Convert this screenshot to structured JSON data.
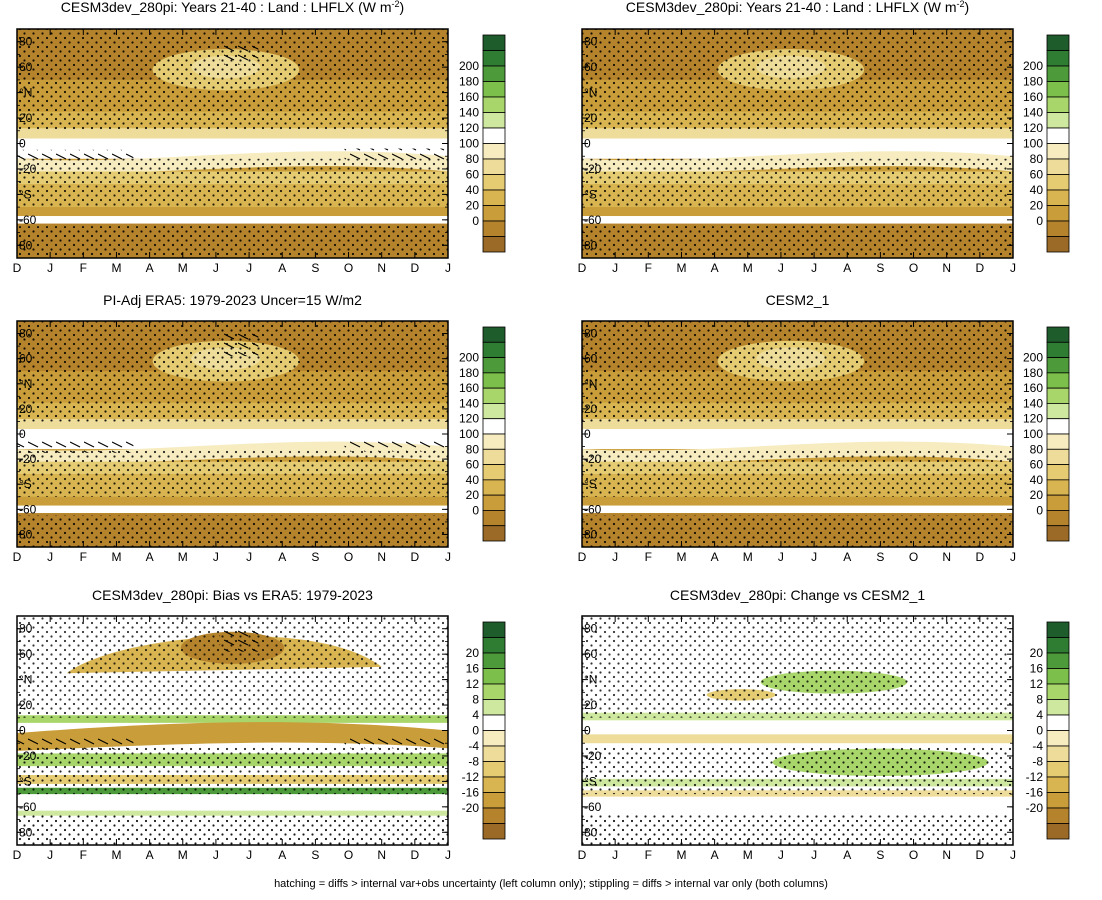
{
  "caption": "hatching = diffs > internal var+obs uncertainty (left column only); stippling = diffs > internal var only (both columns)",
  "colors": {
    "bg_land": "#ffffff",
    "ocean": "#ffffff"
  },
  "months": [
    "D",
    "J",
    "F",
    "M",
    "A",
    "M",
    "J",
    "J",
    "A",
    "S",
    "O",
    "N",
    "D",
    "J"
  ],
  "lat_ticks": [
    "80",
    "60",
    "°N",
    "20",
    "0",
    "-20",
    "°S",
    "-60",
    "80"
  ],
  "abs_levels": [
    "200",
    "180",
    "160",
    "140",
    "120",
    "100",
    "80",
    "60",
    "40",
    "20",
    "0"
  ],
  "abs_colors": [
    "#1f5c2b",
    "#2e7d32",
    "#4c9a3a",
    "#7cbf4a",
    "#a8d66a",
    "#cfe8a0",
    "#ffffff",
    "#f7ecc0",
    "#eedd9a",
    "#e5cc73",
    "#d9b551",
    "#c99d39",
    "#b5832c",
    "#9c6a27"
  ],
  "diff_levels": [
    "20",
    "16",
    "12",
    "8",
    "4",
    "0",
    "-4",
    "-8",
    "-12",
    "-16",
    "-20"
  ],
  "diff_colors": [
    "#1f5c2b",
    "#2e7d32",
    "#4c9a3a",
    "#7cbf4a",
    "#a8d66a",
    "#cfe8a0",
    "#ffffff",
    "#f7ecc0",
    "#eedd9a",
    "#e5cc73",
    "#d9b551",
    "#c99d39",
    "#b5832c",
    "#9c6a27"
  ],
  "chart_data": [
    {
      "type": "heatmap",
      "title": "CESM3dev_280pi: Years 21-40 : Land : LHFLX (W m",
      "title_sup": "-2",
      "title_end": ")",
      "x": [
        "D",
        "J",
        "F",
        "M",
        "A",
        "M",
        "J",
        "J",
        "A",
        "S",
        "O",
        "N",
        "D",
        "J"
      ],
      "y_ticks": [
        "80",
        "60",
        "°N",
        "20",
        "0",
        "-20",
        "°S",
        "-60",
        "80"
      ],
      "levels": [
        "200",
        "180",
        "160",
        "140",
        "120",
        "100",
        "80",
        "60",
        "40",
        "20",
        "0"
      ],
      "scale": "abs",
      "hatching": true,
      "stippling": true
    },
    {
      "type": "heatmap",
      "title": "CESM3dev_280pi: Years 21-40 : Land : LHFLX (W m",
      "title_sup": "-2",
      "title_end": ")",
      "x": [
        "D",
        "J",
        "F",
        "M",
        "A",
        "M",
        "J",
        "J",
        "A",
        "S",
        "O",
        "N",
        "D",
        "J"
      ],
      "y_ticks": [
        "80",
        "60",
        "°N",
        "20",
        "0",
        "-20",
        "°S",
        "-60",
        "80"
      ],
      "levels": [
        "200",
        "180",
        "160",
        "140",
        "120",
        "100",
        "80",
        "60",
        "40",
        "20",
        "0"
      ],
      "scale": "abs",
      "hatching": false,
      "stippling": true
    },
    {
      "type": "heatmap",
      "title": "PI-Adj ERA5: 1979-2023 Uncer=15 W/m2",
      "x": [
        "D",
        "J",
        "F",
        "M",
        "A",
        "M",
        "J",
        "J",
        "A",
        "S",
        "O",
        "N",
        "D",
        "J"
      ],
      "y_ticks": [
        "80",
        "60",
        "°N",
        "20",
        "0",
        "-20",
        "°S",
        "-60",
        "80"
      ],
      "levels": [
        "200",
        "180",
        "160",
        "140",
        "120",
        "100",
        "80",
        "60",
        "40",
        "20",
        "0"
      ],
      "scale": "abs",
      "hatching": true,
      "stippling": true
    },
    {
      "type": "heatmap",
      "title": "CESM2_1",
      "x": [
        "D",
        "J",
        "F",
        "M",
        "A",
        "M",
        "J",
        "J",
        "A",
        "S",
        "O",
        "N",
        "D",
        "J"
      ],
      "y_ticks": [
        "80",
        "60",
        "°N",
        "20",
        "0",
        "-20",
        "°S",
        "-60",
        "80"
      ],
      "levels": [
        "200",
        "180",
        "160",
        "140",
        "120",
        "100",
        "80",
        "60",
        "40",
        "20",
        "0"
      ],
      "scale": "abs",
      "hatching": false,
      "stippling": true
    },
    {
      "type": "heatmap",
      "title": "CESM3dev_280pi: Bias vs ERA5: 1979-2023",
      "x": [
        "D",
        "J",
        "F",
        "M",
        "A",
        "M",
        "J",
        "J",
        "A",
        "S",
        "O",
        "N",
        "D",
        "J"
      ],
      "y_ticks": [
        "80",
        "60",
        "°N",
        "20",
        "0",
        "-20",
        "°S",
        "-60",
        "80"
      ],
      "levels": [
        "20",
        "16",
        "12",
        "8",
        "4",
        "0",
        "-4",
        "-8",
        "-12",
        "-16",
        "-20"
      ],
      "scale": "diff",
      "hatching": true,
      "stippling": true
    },
    {
      "type": "heatmap",
      "title": "CESM3dev_280pi: Change vs CESM2_1",
      "x": [
        "D",
        "J",
        "F",
        "M",
        "A",
        "M",
        "J",
        "J",
        "A",
        "S",
        "O",
        "N",
        "D",
        "J"
      ],
      "y_ticks": [
        "80",
        "60",
        "°N",
        "20",
        "0",
        "-20",
        "°S",
        "-60",
        "80"
      ],
      "levels": [
        "20",
        "16",
        "12",
        "8",
        "4",
        "0",
        "-4",
        "-8",
        "-12",
        "-16",
        "-20"
      ],
      "scale": "diff",
      "hatching": false,
      "stippling": true
    }
  ]
}
